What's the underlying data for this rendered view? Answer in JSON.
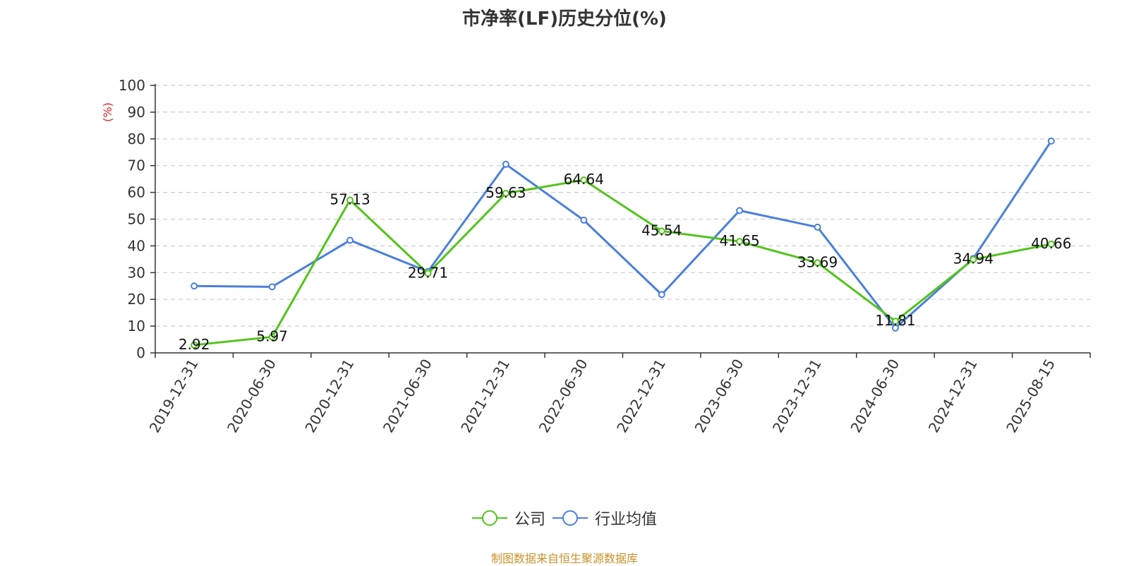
{
  "title": "市净率(LF)历史分位(%)",
  "source_note": "制图数据来自恒生聚源数据库",
  "source_color": "#c8922a",
  "chart_data": {
    "type": "line",
    "title": "市净率(LF)历史分位(%)",
    "xlabel": "",
    "ylabel": "(%)",
    "ylabel_color": "#e02020",
    "ylim": [
      0,
      100
    ],
    "yticks": [
      "0",
      "10",
      "20",
      "30",
      "40",
      "50",
      "60",
      "70",
      "80",
      "90",
      "100"
    ],
    "grid": true,
    "legend_position": "bottom-center",
    "categories": [
      "2019-12-31",
      "2020-06-30",
      "2020-12-31",
      "2021-06-30",
      "2021-12-31",
      "2022-06-30",
      "2022-12-31",
      "2023-06-30",
      "2023-12-31",
      "2024-06-30",
      "2024-12-31",
      "2025-08-15"
    ],
    "series": [
      {
        "name": "公司",
        "color": "#52c41a",
        "values": [
          2.92,
          5.97,
          57.13,
          29.71,
          59.63,
          64.64,
          45.54,
          41.65,
          33.69,
          11.81,
          34.94,
          40.66
        ],
        "labels": [
          "2.92",
          "5.97",
          "57.13",
          "29.71",
          "59.63",
          "64.64",
          "45.54",
          "41.65",
          "33.69",
          "11.81",
          "34.94",
          "40.66"
        ]
      },
      {
        "name": "行业均值",
        "color": "#4a7fdc",
        "values": [
          25.0,
          24.7,
          42.1,
          30.4,
          70.5,
          49.6,
          21.8,
          53.2,
          47.0,
          9.3,
          35.3,
          79.2
        ]
      }
    ]
  }
}
